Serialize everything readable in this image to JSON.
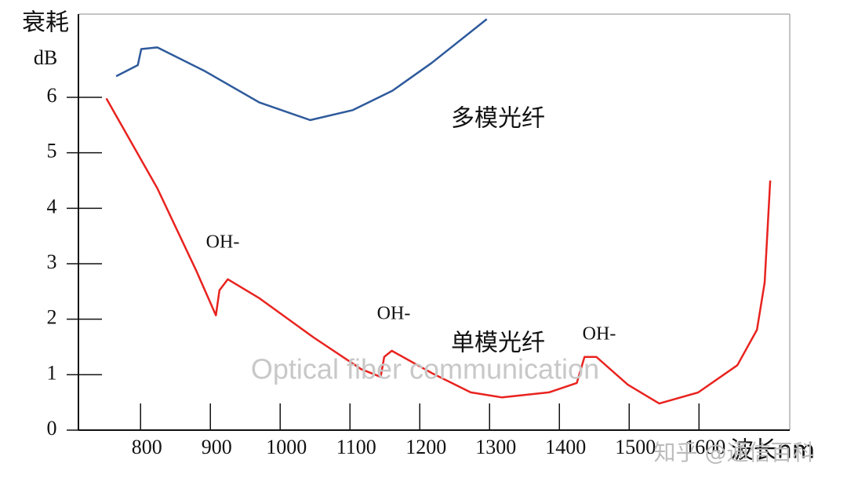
{
  "chart_data": {
    "type": "line",
    "y_label": "衰耗",
    "y_unit": "dB",
    "x_label": "波长nm",
    "xlim": [
      711,
      1730
    ],
    "ylim": [
      0,
      7.5
    ],
    "xticks": [
      800,
      900,
      1000,
      1100,
      1200,
      1300,
      1400,
      1500,
      1600
    ],
    "yticks": [
      0,
      1,
      2,
      3,
      4,
      5,
      6
    ],
    "series": [
      {
        "name": "多模光纤",
        "color": "#2e5a9c",
        "x": [
          765,
          796,
          801,
          824,
          891,
          970,
          1043,
          1104,
          1161,
          1217,
          1296
        ],
        "values": [
          6.38,
          6.58,
          6.87,
          6.9,
          6.48,
          5.91,
          5.59,
          5.77,
          6.12,
          6.62,
          7.41
        ]
      },
      {
        "name": "单模光纤",
        "color": "#e8231f",
        "x": [
          751,
          824,
          880,
          908,
          913,
          925,
          970,
          1048,
          1116,
          1144,
          1149,
          1160,
          1217,
          1273,
          1318,
          1385,
          1425,
          1436,
          1453,
          1498,
          1543,
          1599,
          1655,
          1683,
          1694,
          1702
        ],
        "values": [
          5.98,
          4.36,
          2.87,
          2.07,
          2.52,
          2.72,
          2.38,
          1.67,
          1.1,
          0.96,
          1.32,
          1.43,
          1.03,
          0.68,
          0.59,
          0.68,
          0.85,
          1.32,
          1.32,
          0.82,
          0.48,
          0.68,
          1.17,
          1.81,
          2.66,
          4.5
        ]
      }
    ],
    "annotations": [
      "OH-",
      "OH-",
      "OH-"
    ],
    "watermarks": [
      "Optical fiber communication",
      "知乎 @通信百科"
    ]
  }
}
